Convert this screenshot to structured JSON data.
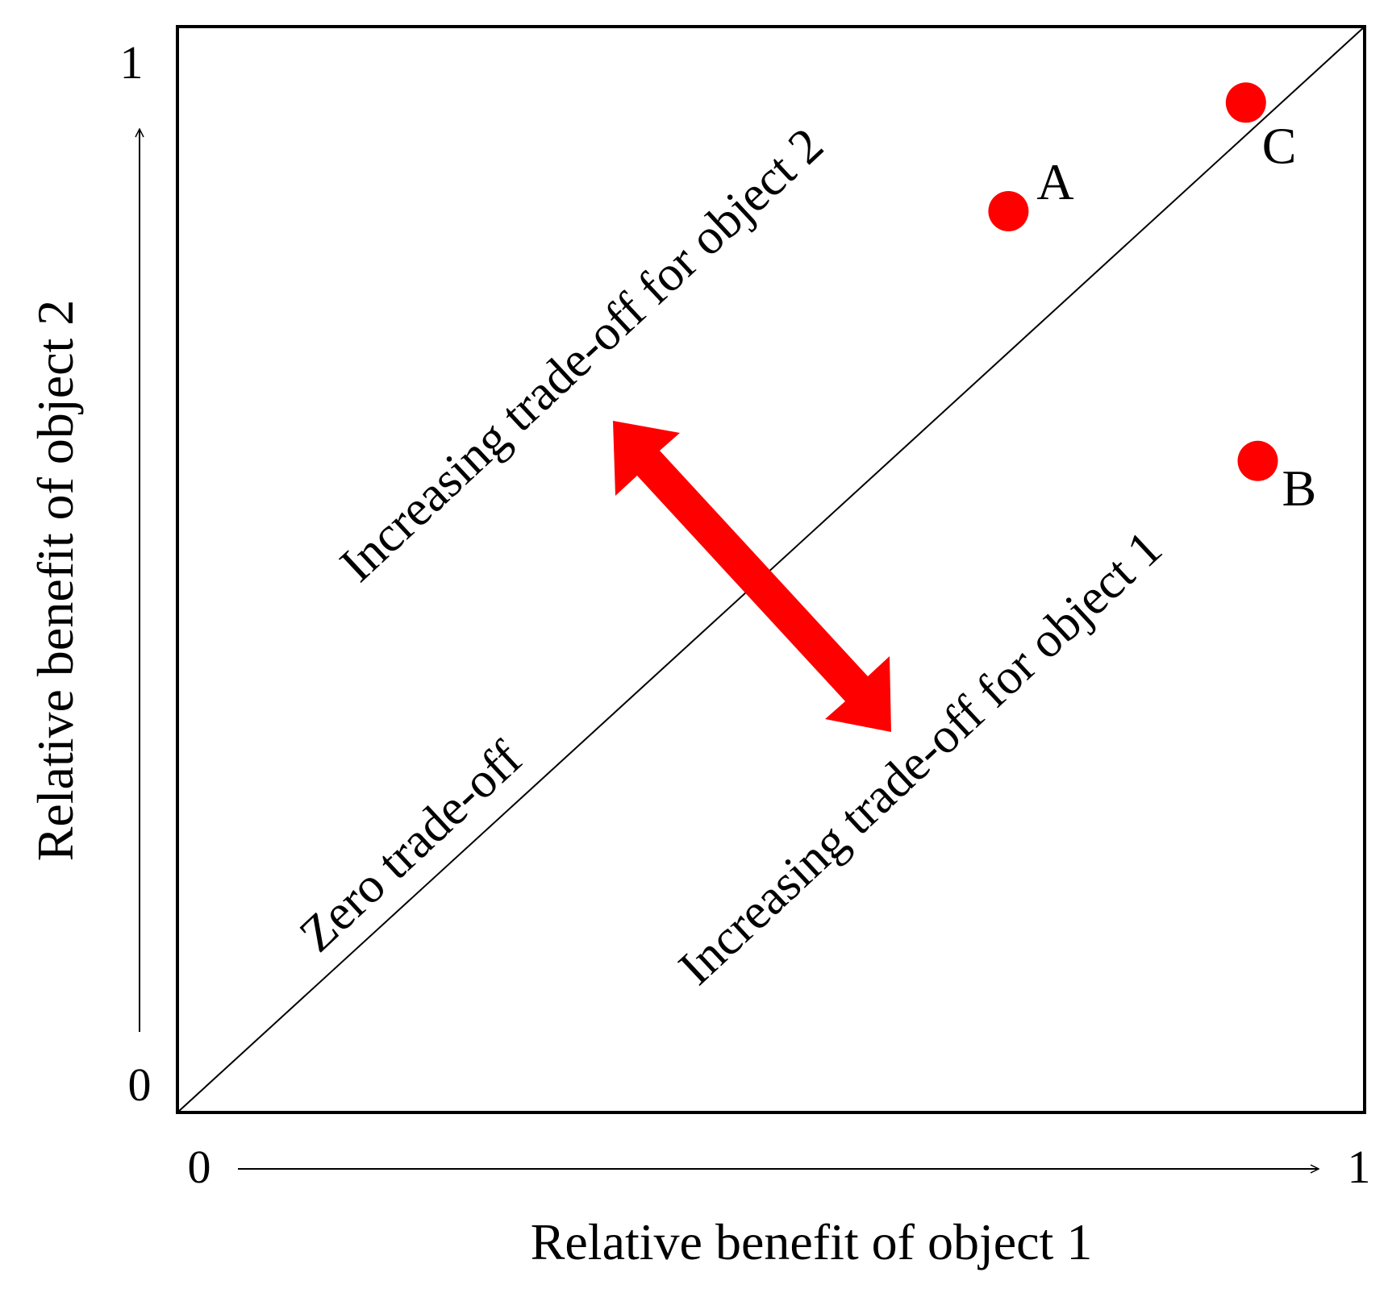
{
  "colors": {
    "marker": "#ff0000",
    "ink": "#000000",
    "background": "#ffffff"
  },
  "chart_data": {
    "type": "scatter",
    "xlabel": "Relative benefit of object 1",
    "ylabel": "Relative benefit of object 2",
    "xlim": [
      0,
      1
    ],
    "ylim": [
      0,
      1
    ],
    "x_ticks": {
      "min": "0",
      "max": "1"
    },
    "y_ticks": {
      "min": "0",
      "max": "1"
    },
    "grid": false,
    "points": [
      {
        "label": "A",
        "x": 0.7,
        "y": 0.83
      },
      {
        "label": "B",
        "x": 0.91,
        "y": 0.6
      },
      {
        "label": "C",
        "x": 0.9,
        "y": 0.93
      }
    ],
    "diagonal_label": "Zero trade-off",
    "upper_region_label": "Increasing trade-off for object 2",
    "lower_region_label": "Increasing trade-off for object 1"
  }
}
